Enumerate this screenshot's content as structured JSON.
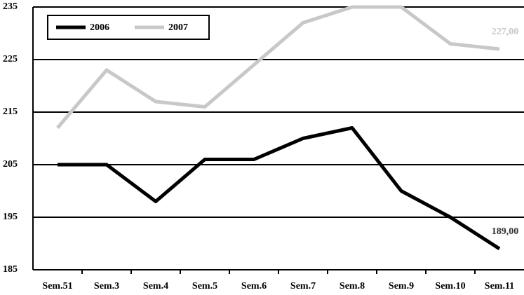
{
  "chart_data": {
    "type": "line",
    "categories": [
      "Sem.51",
      "Sem.3",
      "Sem.4",
      "Sem.5",
      "Sem.6",
      "Sem.7",
      "Sem.8",
      "Sem.9",
      "Sem.10",
      "Sem.11"
    ],
    "series": [
      {
        "name": "2006",
        "color": "#000000",
        "values": [
          205,
          205,
          198,
          206,
          206,
          210,
          212,
          200,
          195,
          189
        ],
        "value_labels": [
          null,
          null,
          null,
          null,
          null,
          null,
          null,
          null,
          null,
          "189,00"
        ]
      },
      {
        "name": "2007",
        "color": "#c8c8c8",
        "values": [
          212,
          223,
          217,
          216,
          224,
          232,
          235,
          235,
          228,
          227
        ],
        "value_labels": [
          null,
          null,
          null,
          null,
          null,
          null,
          null,
          null,
          null,
          "227,00"
        ]
      }
    ],
    "ylim": [
      185,
      235
    ],
    "yticks": [
      185,
      195,
      205,
      215,
      225,
      235
    ],
    "grid": true,
    "legend": "top-left"
  }
}
